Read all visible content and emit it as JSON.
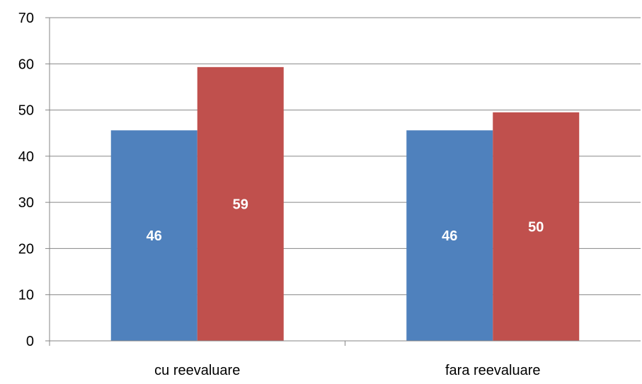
{
  "chart_data": {
    "type": "bar",
    "categories": [
      "cu reevaluare",
      "fara reevaluare"
    ],
    "series": [
      {
        "values": [
          45.6,
          45.6
        ],
        "labels": [
          "46",
          "46"
        ],
        "color": "#4F81BD"
      },
      {
        "values": [
          59.3,
          49.5
        ],
        "labels": [
          "59",
          "50"
        ],
        "color": "#C0504D"
      }
    ],
    "ylim": [
      0,
      70
    ],
    "yticks": [
      "0",
      "10",
      "20",
      "30",
      "40",
      "50",
      "60",
      "70"
    ],
    "grid": true,
    "legend": "none",
    "title": "",
    "xlabel": "",
    "ylabel": ""
  }
}
